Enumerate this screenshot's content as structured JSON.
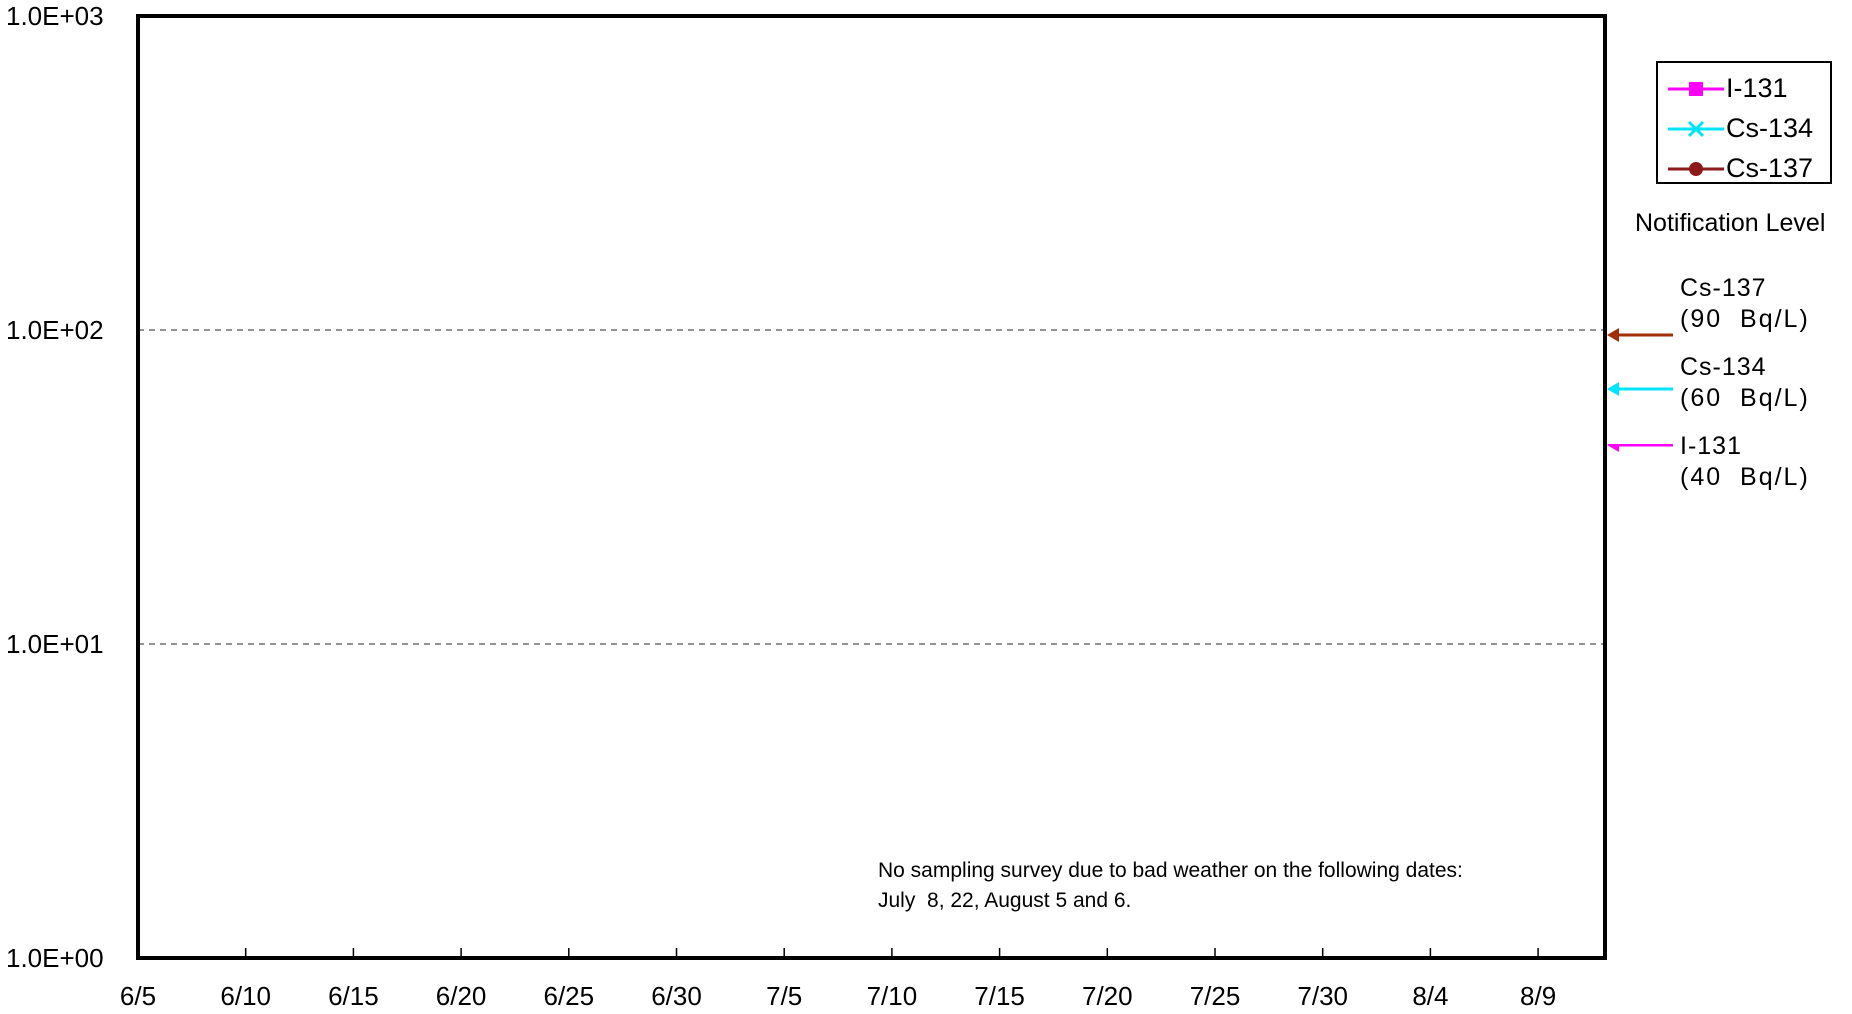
{
  "chart_data": {
    "type": "line",
    "title": "",
    "xlabel": "",
    "ylabel": "",
    "y_scale": "log",
    "ylim": [
      1,
      1000
    ],
    "y_ticks": [
      "1.0E+00",
      "1.0E+01",
      "1.0E+02",
      "1.0E+03"
    ],
    "y_tick_values": [
      1,
      10,
      100,
      1000
    ],
    "x_ticks": [
      "6/5",
      "6/10",
      "6/15",
      "6/20",
      "6/25",
      "6/30",
      "7/5",
      "7/10",
      "7/15",
      "7/20",
      "7/25",
      "7/30",
      "8/4",
      "8/9"
    ],
    "grid": "dashed horizontal at 1.0E+01 and 1.0E+02",
    "legend_position": "top-right, outside plot",
    "series": [
      {
        "name": "I-131",
        "color": "#ff00ff",
        "marker": "square",
        "values": []
      },
      {
        "name": "Cs-134",
        "color": "#00e5ff",
        "marker": "x",
        "values": []
      },
      {
        "name": "Cs-137",
        "color": "#8b1a1a",
        "marker": "circle",
        "values": []
      }
    ],
    "notification_title": "Notification Level",
    "notification_levels": [
      {
        "name": "Cs-137",
        "label": "(90  Bq/L)",
        "value": 90,
        "color": "#a0300a"
      },
      {
        "name": "Cs-134",
        "label": "(60  Bq/L)",
        "value": 60,
        "color": "#00e5ff"
      },
      {
        "name": "I-131",
        "label": "(40  Bq/L)",
        "value": 40,
        "color": "#ff00ff"
      }
    ],
    "annotation_lines": [
      "No sampling survey due to bad weather on the following dates:",
      "July  8, 22, August 5 and 6."
    ]
  }
}
